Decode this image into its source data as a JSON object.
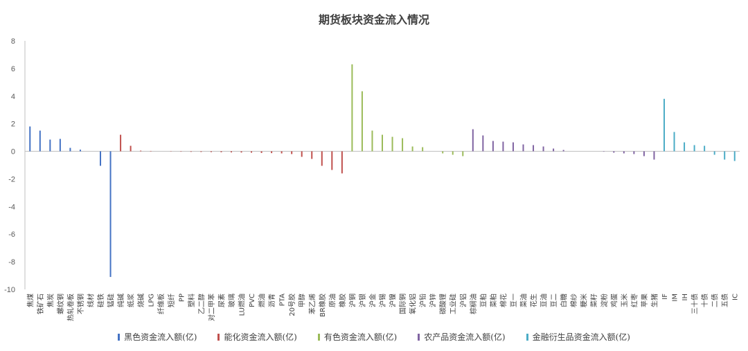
{
  "chart_data": {
    "type": "bar",
    "title": "期货板块资金流入情况",
    "xlabel": "",
    "ylabel": "",
    "ylim": [
      -10,
      8
    ],
    "yticks": [
      8,
      6,
      4,
      2,
      0,
      -2,
      -4,
      -6,
      -8,
      -10
    ],
    "grid": false,
    "legend_position": "bottom",
    "series": [
      {
        "name": "黑色资金流入额(亿)",
        "color": "#4472c4",
        "categories": [
          "焦煤",
          "铁矿石",
          "焦炭",
          "螺纹钢",
          "热轧卷板",
          "不锈钢",
          "线材",
          "硅铁",
          "锰硅"
        ],
        "values": [
          1.8,
          1.5,
          0.85,
          0.9,
          0.25,
          0.12,
          0.0,
          -1.05,
          -9.1
        ]
      },
      {
        "name": "能化资金流入额(亿)",
        "color": "#c0504d",
        "categories": [
          "纯碱",
          "纸浆",
          "烧碱",
          "LPG",
          "纤维板",
          "短纤",
          "PP",
          "塑料",
          "乙二醇",
          "对二甲苯",
          "尿素",
          "玻璃",
          "LU燃油",
          "PVC",
          "燃油",
          "沥青",
          "PTA",
          "20号胶",
          "甲醇",
          "苯乙烯",
          "BR橡胶",
          "原油",
          "橡胶"
        ],
        "values": [
          1.2,
          0.4,
          0.05,
          0.03,
          0.0,
          -0.02,
          -0.03,
          -0.04,
          -0.05,
          -0.06,
          -0.07,
          -0.08,
          -0.09,
          -0.1,
          -0.12,
          -0.13,
          -0.15,
          -0.2,
          -0.4,
          -0.55,
          -1.05,
          -1.35,
          -1.6
        ]
      },
      {
        "name": "有色资金流入额(亿)",
        "color": "#9bbb59",
        "categories": [
          "沪铜",
          "沪银",
          "沪金",
          "沪锡",
          "沪镍",
          "国际铜",
          "氧化铝",
          "沪铅",
          "沪锌",
          "碳酸锂",
          "工业硅",
          "沪铝"
        ],
        "values": [
          6.3,
          4.35,
          1.5,
          1.2,
          1.05,
          0.95,
          0.35,
          0.3,
          0.0,
          -0.15,
          -0.25,
          -0.35
        ]
      },
      {
        "name": "农产品资金流入额(亿)",
        "color": "#8064a2",
        "categories": [
          "棕榈油",
          "豆粕",
          "菜粕",
          "棉花",
          "豆一",
          "菜油",
          "花生",
          "豆油",
          "豆二",
          "白糖",
          "棉纱",
          "粳米",
          "菜籽",
          "淀粉",
          "鸡蛋",
          "玉米",
          "红枣",
          "苹果",
          "生猪"
        ],
        "values": [
          1.6,
          1.15,
          0.75,
          0.7,
          0.65,
          0.5,
          0.45,
          0.35,
          0.2,
          0.1,
          0.0,
          0.0,
          0.0,
          -0.03,
          -0.1,
          -0.15,
          -0.2,
          -0.35,
          -0.6
        ]
      },
      {
        "name": "金融衍生品资金流入额(亿)",
        "color": "#4bacc6",
        "categories": [
          "IF",
          "IM",
          "IH",
          "三十债",
          "十债",
          "二债",
          "五债",
          "IC"
        ],
        "values": [
          3.8,
          1.4,
          0.65,
          0.45,
          0.4,
          -0.25,
          -0.6,
          -0.7
        ]
      }
    ]
  }
}
